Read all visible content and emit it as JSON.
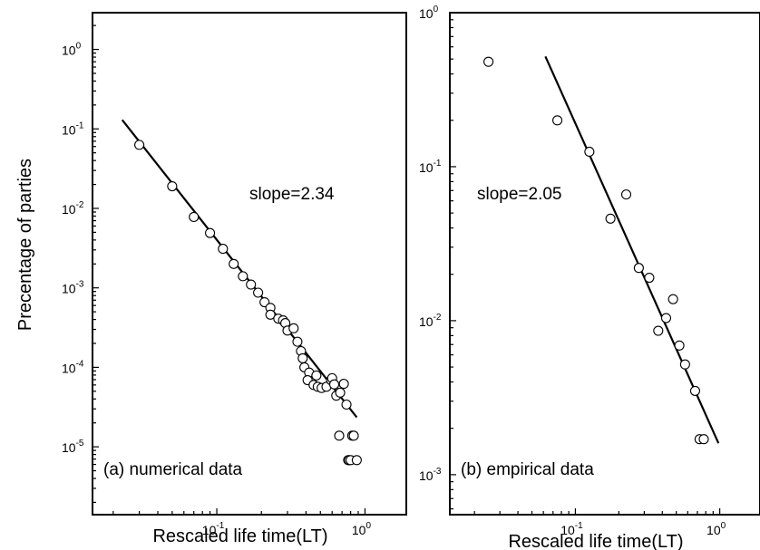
{
  "figure": {
    "ylabel": "Precentage of parties"
  },
  "chart_data": [
    {
      "type": "scatter",
      "panel_label": "(a)  numerical data",
      "xlabel": "Rescaled life time(LT)",
      "ylabel": "Precentage of parties",
      "x_scale": "log",
      "y_scale": "log",
      "xlim": [
        0.0145,
        1.9
      ],
      "ylim": [
        1.4e-06,
        2.9
      ],
      "x_ticks": [
        {
          "base": "10",
          "exp": "-1",
          "value": 0.1
        },
        {
          "base": "10",
          "exp": "0",
          "value": 1
        }
      ],
      "y_ticks": [
        {
          "base": "10",
          "exp": "0",
          "value": 1
        },
        {
          "base": "10",
          "exp": "-1",
          "value": 0.1
        },
        {
          "base": "10",
          "exp": "-2",
          "value": 0.01
        },
        {
          "base": "10",
          "exp": "-3",
          "value": 0.001
        },
        {
          "base": "10",
          "exp": "-4",
          "value": 0.0001
        },
        {
          "base": "10",
          "exp": "-5",
          "value": 1e-05
        }
      ],
      "annotation": "slope=2.34",
      "fit_line": {
        "x": [
          0.023,
          0.88
        ],
        "y": [
          0.13,
          2.35e-05
        ]
      },
      "points": [
        [
          0.03,
          0.063
        ],
        [
          0.05,
          0.019
        ],
        [
          0.07,
          0.0078
        ],
        [
          0.09,
          0.0049
        ],
        [
          0.11,
          0.0031
        ],
        [
          0.13,
          0.002
        ],
        [
          0.15,
          0.0014
        ],
        [
          0.17,
          0.0011
        ],
        [
          0.19,
          0.00087
        ],
        [
          0.21,
          0.00066
        ],
        [
          0.23,
          0.00056
        ],
        [
          0.23,
          0.00046
        ],
        [
          0.26,
          0.00041
        ],
        [
          0.28,
          0.00039
        ],
        [
          0.29,
          0.00036
        ],
        [
          0.3,
          0.00029
        ],
        [
          0.33,
          0.00031
        ],
        [
          0.35,
          0.00021
        ],
        [
          0.37,
          0.00016
        ],
        [
          0.38,
          0.00013
        ],
        [
          0.39,
          0.0001
        ],
        [
          0.42,
          8.6e-05
        ],
        [
          0.41,
          6.9e-05
        ],
        [
          0.45,
          6e-05
        ],
        [
          0.47,
          7.9e-05
        ],
        [
          0.48,
          5.7e-05
        ],
        [
          0.51,
          5.5e-05
        ],
        [
          0.55,
          5.7e-05
        ],
        [
          0.59,
          6.9e-05
        ],
        [
          0.6,
          7.3e-05
        ],
        [
          0.62,
          6.1e-05
        ],
        [
          0.64,
          4.4e-05
        ],
        [
          0.68,
          4.8e-05
        ],
        [
          0.72,
          6.2e-05
        ],
        [
          0.75,
          3.4e-05
        ],
        [
          0.67,
          1.38e-05
        ],
        [
          0.82,
          1.38e-05
        ],
        [
          0.84,
          1.38e-05
        ],
        [
          0.77,
          6.8e-06
        ],
        [
          0.78,
          6.8e-06
        ],
        [
          0.8,
          6.8e-06
        ],
        [
          0.88,
          6.8e-06
        ]
      ]
    },
    {
      "type": "scatter",
      "panel_label": "(b) empirical data",
      "xlabel": "Rescaled life time(LT)",
      "ylabel": "",
      "x_scale": "log",
      "y_scale": "log",
      "xlim": [
        0.0135,
        1.9
      ],
      "ylim": [
        0.00055,
        1.0
      ],
      "x_ticks": [
        {
          "base": "10",
          "exp": "-1",
          "value": 0.1
        },
        {
          "base": "10",
          "exp": "0",
          "value": 1
        }
      ],
      "y_ticks": [
        {
          "base": "10",
          "exp": "0",
          "value": 1
        },
        {
          "base": "10",
          "exp": "-1",
          "value": 0.1
        },
        {
          "base": "10",
          "exp": "-2",
          "value": 0.01
        },
        {
          "base": "10",
          "exp": "-3",
          "value": 0.001
        }
      ],
      "annotation": "slope=2.05",
      "fit_line": {
        "x": [
          0.062,
          0.98
        ],
        "y": [
          0.52,
          0.0016
        ]
      },
      "points": [
        [
          0.025,
          0.48
        ],
        [
          0.075,
          0.2
        ],
        [
          0.125,
          0.125
        ],
        [
          0.175,
          0.046
        ],
        [
          0.225,
          0.066
        ],
        [
          0.275,
          0.022
        ],
        [
          0.325,
          0.019
        ],
        [
          0.375,
          0.0086
        ],
        [
          0.425,
          0.0104
        ],
        [
          0.475,
          0.0138
        ],
        [
          0.525,
          0.0069
        ],
        [
          0.575,
          0.0052
        ],
        [
          0.675,
          0.0035
        ],
        [
          0.725,
          0.0017
        ],
        [
          0.775,
          0.0017
        ]
      ]
    }
  ]
}
